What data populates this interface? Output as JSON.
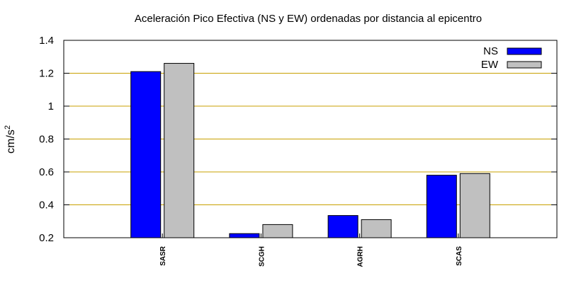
{
  "chart_data": {
    "type": "bar",
    "title": "Aceleración Pico Efectiva (NS y EW) ordenadas por distancia al epicentro",
    "xlabel": "",
    "ylabel": "cm/s",
    "ylabel_superscript": "2",
    "ylim": [
      0.2,
      1.4
    ],
    "yticks": [
      "0.2",
      "0.4",
      "0.6",
      "0.8",
      "1",
      "1.2",
      "1.4"
    ],
    "grid": "horizontal",
    "legend_position": "top-right",
    "categories": [
      "SASR",
      "SCGH",
      "AGRH",
      "SCAS"
    ],
    "series": [
      {
        "name": "NS",
        "color": "#0000ff",
        "values": [
          1.21,
          0.225,
          0.335,
          0.58
        ]
      },
      {
        "name": "EW",
        "color": "#c0c0c0",
        "values": [
          1.26,
          0.28,
          0.31,
          0.59
        ]
      }
    ],
    "grid_color": "#c8a000"
  }
}
